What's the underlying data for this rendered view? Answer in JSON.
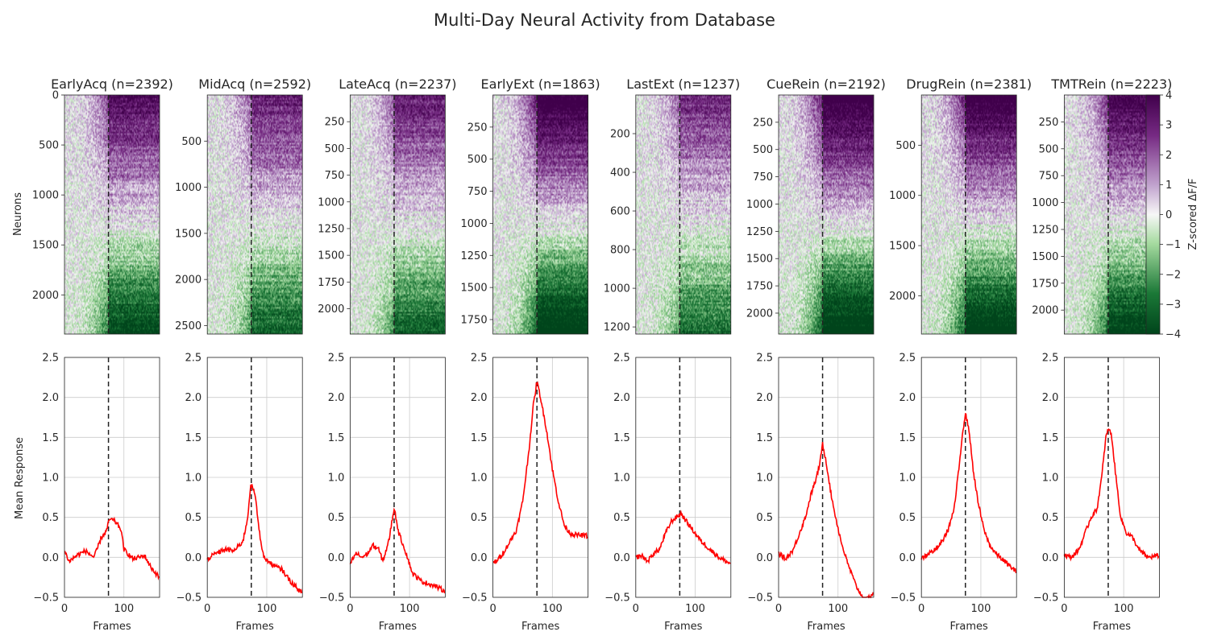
{
  "figure": {
    "title": "Multi-Day Neural Activity from Database"
  },
  "chart_data": {
    "type": "heatmap+line",
    "frames": 160,
    "event_frame": 74,
    "colorbar": {
      "label": "Z-scored ΔF/F",
      "range": [
        -4,
        4
      ],
      "ticks": [
        "4",
        "3",
        "2",
        "1",
        "0",
        "−1",
        "−2",
        "−3",
        "−4"
      ],
      "colors": [
        "#00441b",
        "#1b7837",
        "#a6dba0",
        "#f7f7f7",
        "#c2a5cf",
        "#762a83",
        "#40004b"
      ]
    },
    "heatmap": {
      "ylabel": "Neurons"
    },
    "line": {
      "ylabel": "Mean Response",
      "xlabel": "Frames",
      "ylim": [
        -0.5,
        2.5
      ],
      "yticks": [
        "−0.5",
        "0.0",
        "0.5",
        "1.0",
        "1.5",
        "2.0",
        "2.5"
      ],
      "xticks": [
        "0",
        "100"
      ],
      "color": "#ff0000"
    },
    "sessions": [
      {
        "title": "EarlyAcq (n=2392)",
        "n": 2392,
        "yticks": [
          0,
          500,
          1000,
          1500,
          2000
        ],
        "ytick_labels": [
          "0",
          "500",
          "1000",
          "1500",
          "2000"
        ],
        "anchors": [
          [
            0,
            0.08
          ],
          [
            8,
            -0.05
          ],
          [
            20,
            0.02
          ],
          [
            35,
            0.08
          ],
          [
            50,
            0.0
          ],
          [
            62,
            0.25
          ],
          [
            70,
            0.32
          ],
          [
            76,
            0.48
          ],
          [
            85,
            0.45
          ],
          [
            95,
            0.35
          ],
          [
            100,
            0.1
          ],
          [
            115,
            -0.02
          ],
          [
            125,
            0.0
          ],
          [
            135,
            0.02
          ],
          [
            145,
            -0.12
          ],
          [
            159,
            -0.25
          ]
        ]
      },
      {
        "title": "MidAcq (n=2592)",
        "n": 2592,
        "yticks": [
          500,
          1000,
          1500,
          2000,
          2500
        ],
        "ytick_labels": [
          "500",
          "1000",
          "1500",
          "2000",
          "2500"
        ],
        "anchors": [
          [
            0,
            -0.02
          ],
          [
            15,
            0.05
          ],
          [
            30,
            0.1
          ],
          [
            45,
            0.08
          ],
          [
            60,
            0.2
          ],
          [
            68,
            0.5
          ],
          [
            73,
            0.92
          ],
          [
            80,
            0.8
          ],
          [
            88,
            0.3
          ],
          [
            95,
            0.0
          ],
          [
            110,
            -0.1
          ],
          [
            125,
            -0.15
          ],
          [
            140,
            -0.3
          ],
          [
            159,
            -0.45
          ]
        ]
      },
      {
        "title": "LateAcq (n=2237)",
        "n": 2237,
        "yticks": [
          250,
          500,
          750,
          1000,
          1250,
          1500,
          1750,
          2000
        ],
        "ytick_labels": [
          "250",
          "500",
          "750",
          "1000",
          "1250",
          "1500",
          "1750",
          "2000"
        ],
        "anchors": [
          [
            0,
            -0.08
          ],
          [
            10,
            0.05
          ],
          [
            20,
            0.0
          ],
          [
            30,
            0.05
          ],
          [
            38,
            0.15
          ],
          [
            48,
            0.1
          ],
          [
            55,
            -0.05
          ],
          [
            65,
            0.2
          ],
          [
            74,
            0.62
          ],
          [
            82,
            0.3
          ],
          [
            92,
            0.1
          ],
          [
            105,
            -0.2
          ],
          [
            120,
            -0.3
          ],
          [
            140,
            -0.35
          ],
          [
            159,
            -0.42
          ]
        ]
      },
      {
        "title": "EarlyExt (n=1863)",
        "n": 1863,
        "yticks": [
          250,
          500,
          750,
          1000,
          1250,
          1500,
          1750
        ],
        "ytick_labels": [
          "250",
          "500",
          "750",
          "1000",
          "1250",
          "1500",
          "1750"
        ],
        "anchors": [
          [
            0,
            -0.08
          ],
          [
            12,
            0.0
          ],
          [
            25,
            0.15
          ],
          [
            40,
            0.35
          ],
          [
            50,
            0.7
          ],
          [
            60,
            1.3
          ],
          [
            68,
            1.9
          ],
          [
            74,
            2.2
          ],
          [
            80,
            2.0
          ],
          [
            90,
            1.6
          ],
          [
            100,
            1.1
          ],
          [
            110,
            0.7
          ],
          [
            120,
            0.4
          ],
          [
            130,
            0.3
          ],
          [
            140,
            0.28
          ],
          [
            159,
            0.27
          ]
        ]
      },
      {
        "title": "LastExt (n=1237)",
        "n": 1237,
        "yticks": [
          200,
          400,
          600,
          800,
          1000,
          1200
        ],
        "ytick_labels": [
          "200",
          "400",
          "600",
          "800",
          "1000",
          "1200"
        ],
        "anchors": [
          [
            0,
            0.0
          ],
          [
            10,
            0.02
          ],
          [
            20,
            -0.05
          ],
          [
            30,
            0.05
          ],
          [
            40,
            0.1
          ],
          [
            50,
            0.3
          ],
          [
            60,
            0.45
          ],
          [
            68,
            0.5
          ],
          [
            76,
            0.55
          ],
          [
            85,
            0.45
          ],
          [
            95,
            0.35
          ],
          [
            110,
            0.2
          ],
          [
            125,
            0.1
          ],
          [
            140,
            0.0
          ],
          [
            159,
            -0.08
          ]
        ]
      },
      {
        "title": "CueRein (n=2192)",
        "n": 2192,
        "yticks": [
          250,
          500,
          750,
          1000,
          1250,
          1500,
          1750,
          2000
        ],
        "ytick_labels": [
          "250",
          "500",
          "750",
          "1000",
          "1250",
          "1500",
          "1750",
          "2000"
        ],
        "anchors": [
          [
            0,
            0.05
          ],
          [
            12,
            -0.02
          ],
          [
            25,
            0.1
          ],
          [
            35,
            0.3
          ],
          [
            45,
            0.5
          ],
          [
            55,
            0.8
          ],
          [
            64,
            1.0
          ],
          [
            70,
            1.2
          ],
          [
            74,
            1.42
          ],
          [
            80,
            1.2
          ],
          [
            88,
            0.8
          ],
          [
            96,
            0.5
          ],
          [
            105,
            0.2
          ],
          [
            115,
            -0.05
          ],
          [
            130,
            -0.35
          ],
          [
            145,
            -0.55
          ],
          [
            159,
            -0.45
          ]
        ]
      },
      {
        "title": "DrugRein (n=2381)",
        "n": 2381,
        "yticks": [
          500,
          1000,
          1500,
          2000
        ],
        "ytick_labels": [
          "500",
          "1000",
          "1500",
          "2000"
        ],
        "anchors": [
          [
            0,
            -0.02
          ],
          [
            12,
            0.05
          ],
          [
            25,
            0.1
          ],
          [
            35,
            0.2
          ],
          [
            45,
            0.35
          ],
          [
            55,
            0.6
          ],
          [
            63,
            1.1
          ],
          [
            69,
            1.55
          ],
          [
            74,
            1.8
          ],
          [
            80,
            1.6
          ],
          [
            87,
            1.1
          ],
          [
            95,
            0.7
          ],
          [
            105,
            0.35
          ],
          [
            115,
            0.15
          ],
          [
            125,
            0.05
          ],
          [
            140,
            -0.05
          ],
          [
            159,
            -0.18
          ]
        ]
      },
      {
        "title": "TMTRein (n=2223)",
        "n": 2223,
        "yticks": [
          250,
          500,
          750,
          1000,
          1250,
          1500,
          1750,
          2000
        ],
        "ytick_labels": [
          "250",
          "500",
          "750",
          "1000",
          "1250",
          "1500",
          "1750",
          "2000"
        ],
        "anchors": [
          [
            0,
            0.03
          ],
          [
            12,
            0.0
          ],
          [
            25,
            0.1
          ],
          [
            35,
            0.3
          ],
          [
            45,
            0.5
          ],
          [
            55,
            0.6
          ],
          [
            63,
            1.0
          ],
          [
            70,
            1.5
          ],
          [
            75,
            1.62
          ],
          [
            80,
            1.5
          ],
          [
            87,
            1.0
          ],
          [
            95,
            0.5
          ],
          [
            105,
            0.3
          ],
          [
            115,
            0.25
          ],
          [
            125,
            0.1
          ],
          [
            140,
            0.0
          ],
          [
            159,
            0.02
          ]
        ]
      }
    ]
  }
}
